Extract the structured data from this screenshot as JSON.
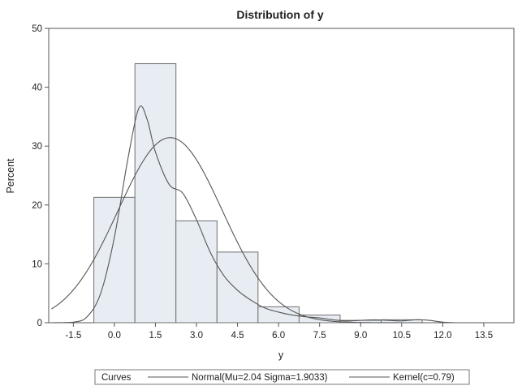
{
  "chart_data": {
    "type": "bar",
    "title": "Distribution of y",
    "xlabel": "y",
    "ylabel": "Percent",
    "xlim": [
      -2.4,
      14.6
    ],
    "ylim": [
      0,
      50
    ],
    "x_ticks": [
      -1.5,
      0.0,
      1.5,
      3.0,
      4.5,
      6.0,
      7.5,
      9.0,
      10.5,
      12.0,
      13.5
    ],
    "x_tick_labels": [
      "-1.5",
      "0.0",
      "1.5",
      "3.0",
      "4.5",
      "6.0",
      "7.5",
      "9.0",
      "10.5",
      "12.0",
      "13.5"
    ],
    "y_ticks": [
      0,
      10,
      20,
      30,
      40,
      50
    ],
    "y_tick_labels": [
      "0",
      "10",
      "20",
      "30",
      "40",
      "50"
    ],
    "bin_width": 1.5,
    "bins": [
      {
        "center": 0.0,
        "percent": 21.3
      },
      {
        "center": 1.5,
        "percent": 44.0
      },
      {
        "center": 3.0,
        "percent": 17.3
      },
      {
        "center": 4.5,
        "percent": 12.0
      },
      {
        "center": 6.0,
        "percent": 2.7
      },
      {
        "center": 7.5,
        "percent": 1.3
      },
      {
        "center": 9.0,
        "percent": 0.4
      },
      {
        "center": 10.5,
        "percent": 0.5
      },
      {
        "center": 12.0,
        "percent": 0.0
      }
    ],
    "normal": {
      "mu": 2.04,
      "sigma": 1.9033
    },
    "kernel": {
      "x": [
        -2.3,
        -1.5,
        -1.0,
        -0.5,
        0.0,
        0.5,
        0.9,
        1.2,
        1.5,
        2.0,
        2.5,
        3.0,
        3.5,
        4.0,
        4.5,
        5.0,
        5.5,
        6.0,
        6.5,
        7.0,
        7.5,
        8.0,
        8.5,
        9.0,
        9.5,
        10.0,
        10.5,
        11.0,
        11.5,
        12.0,
        12.5,
        13.0
      ],
      "y": [
        0.0,
        0.1,
        1.0,
        5.0,
        14.5,
        28.0,
        36.5,
        34.5,
        29.0,
        23.5,
        22.0,
        17.5,
        12.0,
        8.0,
        5.5,
        3.8,
        2.5,
        1.8,
        1.3,
        1.0,
        0.8,
        0.5,
        0.3,
        0.4,
        0.5,
        0.4,
        0.3,
        0.5,
        0.4,
        0.1,
        0.0,
        0.0
      ]
    },
    "grid": false,
    "legend": {
      "placement": "bottom",
      "header": "Curves",
      "entries": [
        "Normal(Mu=2.04 Sigma=1.9033)",
        "Kernel(c=0.79)"
      ]
    },
    "colors": {
      "bar_fill": "#e8edf3",
      "bar_stroke": "#6f6f6f",
      "curve": "#555555",
      "axis": "#555555"
    }
  }
}
